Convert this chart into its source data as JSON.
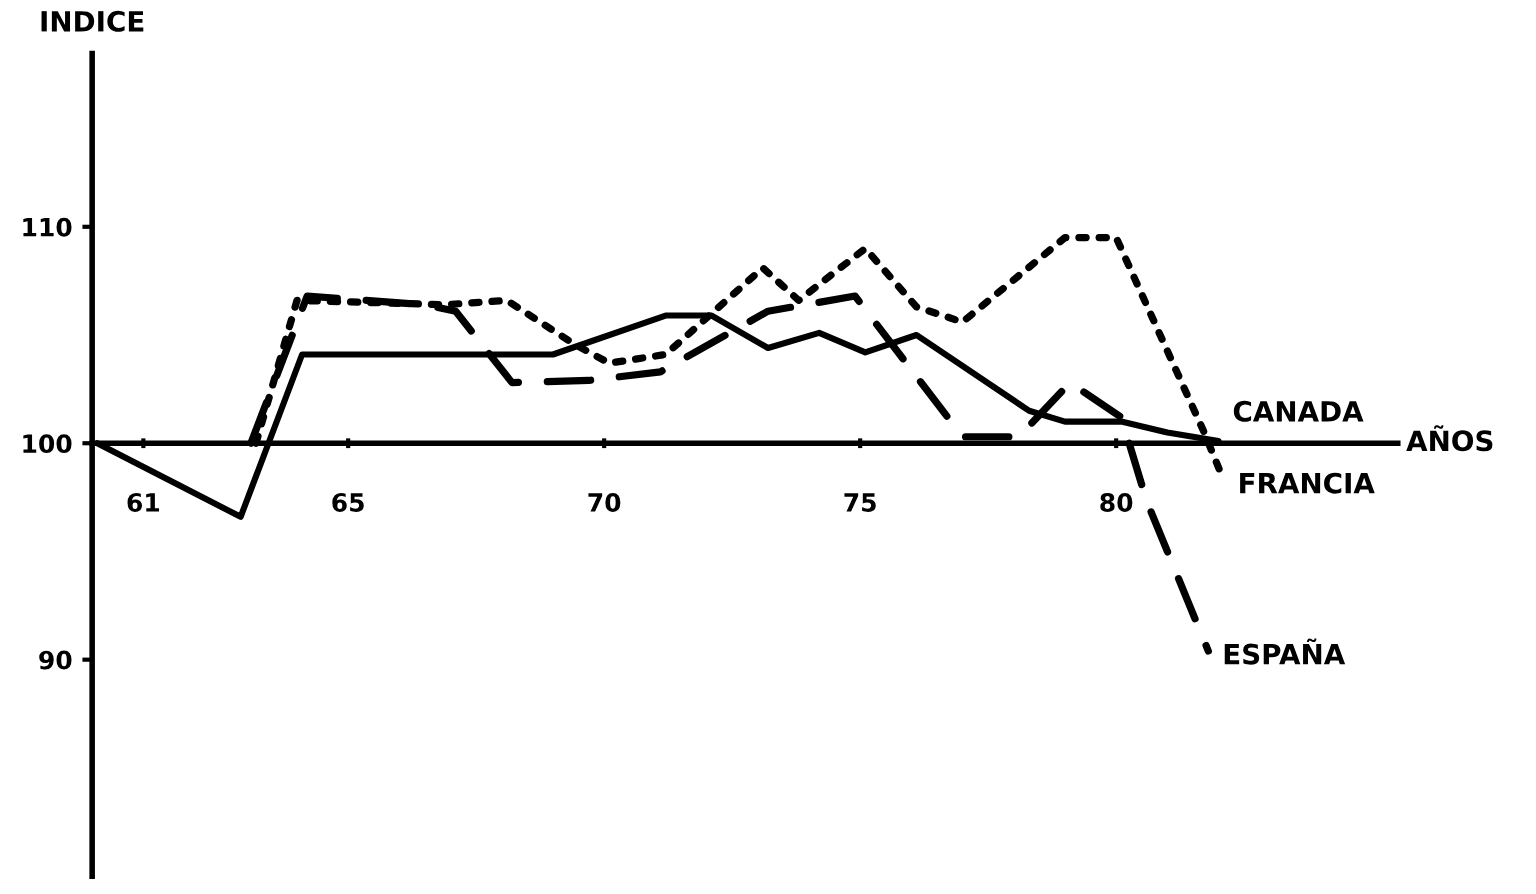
{
  "chart_data": {
    "type": "line",
    "xlabel": "AÑOS",
    "ylabel": "INDICE",
    "xlim": [
      60,
      85.5
    ],
    "xticks": [
      61,
      65,
      70,
      75,
      80
    ],
    "ylim": [
      80,
      118
    ],
    "yticks": [
      90,
      100,
      110
    ],
    "grid": false,
    "legend": false,
    "marker": "none",
    "series": [
      {
        "name": "CANADA",
        "color": "#000000",
        "line_style": "solid",
        "x": [
          60.1,
          62.9,
          64.1,
          69.0,
          71.2,
          72.1,
          73.2,
          74.2,
          75.1,
          76.1,
          78.3,
          79.0,
          80.1,
          81.0,
          82.0
        ],
        "values": [
          100,
          96.6,
          104.1,
          104.1,
          105.9,
          105.9,
          104.4,
          105.1,
          104.2,
          105.0,
          101.5,
          101.0,
          101.0,
          100.5,
          100.1
        ]
      },
      {
        "name": "FRANCIA",
        "color": "#000000",
        "line_style": "dotted",
        "x": [
          63.2,
          64.0,
          66.9,
          68.1,
          69.4,
          70.1,
          71.2,
          73.1,
          73.8,
          75.1,
          76.1,
          77.0,
          79.0,
          80.0,
          81.7,
          82.1
        ],
        "values": [
          100,
          106.6,
          106.4,
          106.6,
          104.6,
          103.7,
          104.1,
          108.1,
          106.6,
          109.0,
          106.3,
          105.6,
          109.5,
          109.5,
          100.6,
          98.3
        ]
      },
      {
        "name": "ESPAÑA",
        "color": "#000000",
        "line_style": "dashed",
        "x": [
          63.1,
          64.2,
          66.5,
          67.1,
          68.2,
          69.7,
          71.1,
          73.2,
          74.9,
          77.0,
          78.1,
          79.1,
          80.1,
          80.6,
          81.8
        ],
        "values": [
          100,
          106.8,
          106.4,
          106.1,
          102.8,
          102.9,
          103.3,
          106.1,
          106.8,
          100.3,
          100.3,
          102.8,
          101.2,
          97.3,
          90.4
        ]
      }
    ]
  }
}
